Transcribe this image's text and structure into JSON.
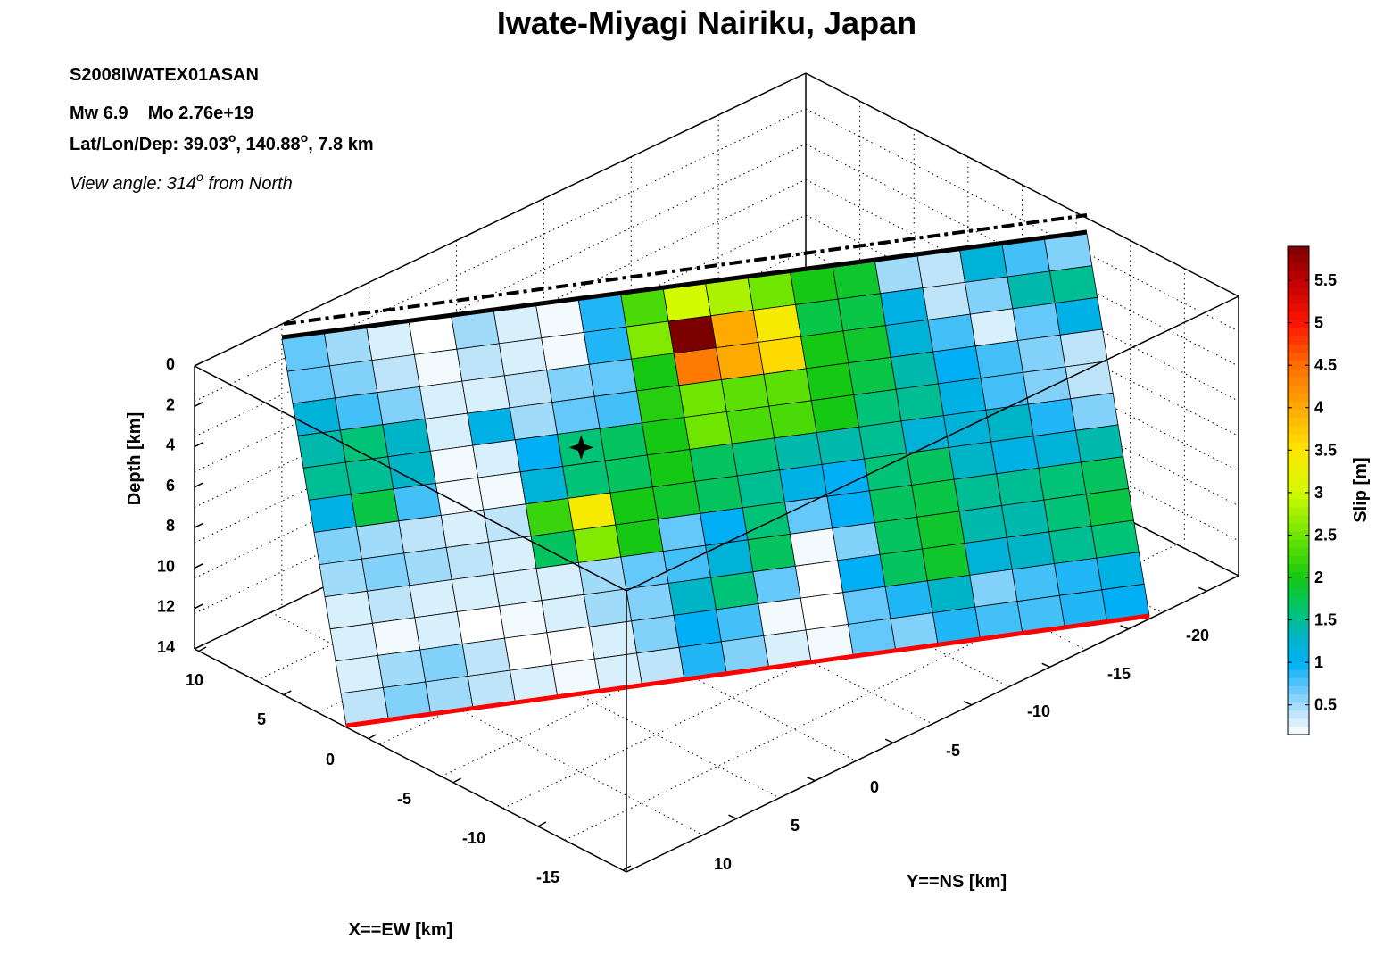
{
  "chart_data": {
    "type": "heatmap",
    "title": "Iwate-Miyagi Nairiku, Japan",
    "event_id": "S2008IWATEX01ASAN",
    "magnitude_text": "Mw 6.9    Mo 2.76e+19",
    "location_prefix": "Lat/Lon/Dep: 39.03",
    "location_mid": ", 140.88",
    "location_suffix": ", 7.8 km",
    "degree_mark": "o",
    "view_prefix": "View angle: 314",
    "view_suffix": " from North",
    "xlabel": "X==EW [km]",
    "ylabel": "Y==NS [km]",
    "zlabel": "Depth [km]",
    "colorbar_label": "Slip [m]",
    "x_ticks": [
      "10",
      "5",
      "0",
      "-5",
      "-10",
      "-15"
    ],
    "y_ticks": [
      "10",
      "5",
      "0",
      "-5",
      "-10",
      "-15",
      "-20"
    ],
    "z_ticks": [
      "0",
      "2",
      "4",
      "6",
      "8",
      "10",
      "12",
      "14"
    ],
    "colorbar_ticks": [
      "0.5",
      "1",
      "1.5",
      "2",
      "2.5",
      "3",
      "3.5",
      "4",
      "4.5",
      "5",
      "5.5"
    ],
    "colorbar_range": [
      0.15,
      5.9
    ],
    "grid": true,
    "hypocenter": {
      "row": 4,
      "col": 6
    },
    "slip": [
      [
        0.7,
        0.5,
        0.3,
        0.1,
        0.5,
        0.3,
        0.2,
        0.9,
        2.3,
        3.0,
        2.8,
        2.5,
        2.0,
        1.9,
        0.5,
        0.4,
        1.2,
        0.8,
        0.6
      ],
      [
        0.7,
        0.6,
        0.4,
        0.2,
        0.4,
        0.3,
        0.2,
        0.9,
        2.6,
        5.9,
        4.0,
        3.4,
        1.8,
        1.8,
        1.1,
        0.4,
        0.6,
        1.4,
        1.5
      ],
      [
        1.2,
        0.8,
        0.6,
        0.3,
        0.3,
        0.4,
        0.6,
        0.7,
        2.0,
        4.4,
        4.0,
        3.6,
        2.0,
        1.9,
        1.2,
        0.8,
        0.3,
        0.7,
        1.1
      ],
      [
        1.4,
        1.6,
        1.3,
        0.3,
        1.1,
        0.5,
        0.7,
        0.8,
        2.1,
        2.5,
        2.4,
        2.4,
        2.0,
        1.8,
        1.4,
        1.0,
        0.8,
        0.6,
        0.4
      ],
      [
        1.5,
        1.5,
        1.3,
        0.2,
        0.3,
        1.0,
        1.6,
        1.7,
        2.0,
        2.5,
        2.3,
        2.3,
        2.0,
        1.6,
        1.5,
        1.1,
        0.8,
        0.6,
        0.4
      ],
      [
        1.1,
        1.8,
        0.8,
        0.2,
        0.2,
        1.2,
        1.6,
        1.7,
        2.0,
        1.7,
        1.6,
        1.4,
        1.4,
        1.5,
        1.2,
        1.2,
        1.3,
        0.9,
        0.6
      ],
      [
        0.6,
        0.5,
        0.4,
        0.3,
        0.4,
        2.2,
        3.4,
        2.0,
        1.9,
        1.7,
        1.5,
        1.1,
        1.0,
        1.6,
        1.7,
        1.3,
        1.1,
        1.2,
        1.4
      ],
      [
        0.5,
        0.6,
        0.5,
        0.4,
        0.3,
        1.7,
        2.6,
        2.0,
        0.7,
        1.0,
        1.6,
        0.7,
        1.0,
        1.7,
        1.8,
        1.5,
        1.5,
        1.6,
        1.7
      ],
      [
        0.3,
        0.4,
        0.3,
        0.3,
        0.3,
        0.3,
        0.5,
        0.7,
        0.8,
        1.2,
        1.7,
        0.2,
        0.6,
        1.7,
        1.9,
        1.4,
        1.4,
        1.6,
        1.8
      ],
      [
        0.3,
        0.2,
        0.3,
        0.1,
        0.2,
        0.3,
        0.5,
        0.6,
        1.3,
        1.6,
        0.7,
        0.1,
        1.0,
        1.7,
        1.9,
        1.2,
        1.3,
        1.5,
        1.6
      ],
      [
        0.3,
        0.5,
        0.6,
        0.4,
        0.1,
        0.1,
        0.3,
        0.6,
        1.0,
        0.8,
        0.2,
        0.1,
        0.7,
        0.9,
        1.3,
        0.6,
        0.8,
        0.9,
        1.1
      ],
      [
        0.4,
        0.6,
        0.5,
        0.4,
        0.3,
        0.2,
        0.3,
        0.4,
        0.9,
        0.6,
        0.3,
        0.2,
        0.7,
        0.6,
        0.9,
        0.8,
        0.8,
        0.9,
        1.0
      ]
    ],
    "colors": {
      "surface_trace": "#000000",
      "bottom_edge": "#ff0000",
      "box": "#000000",
      "grid": "#000000",
      "background": "#ffffff"
    }
  }
}
